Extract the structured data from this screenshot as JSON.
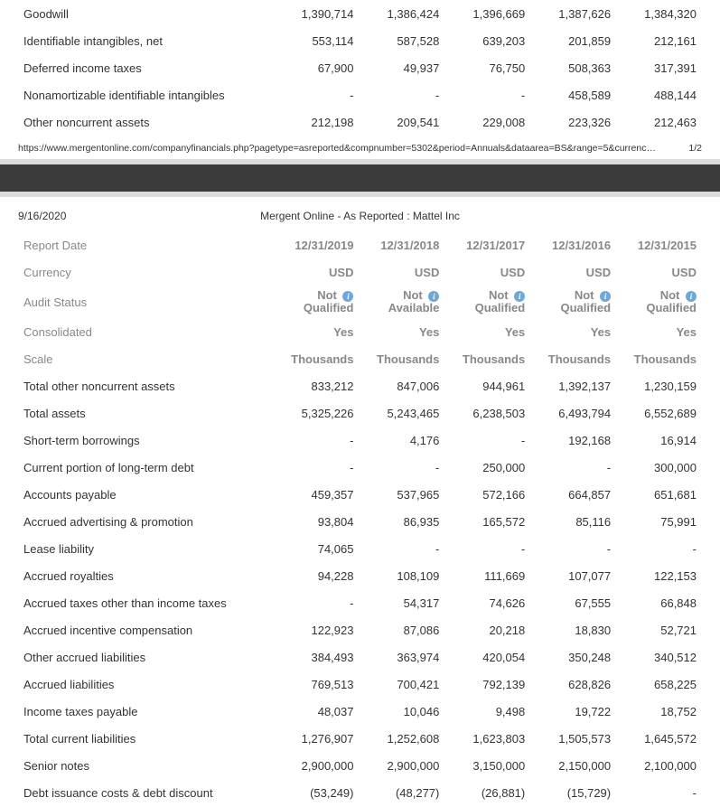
{
  "footer": {
    "url": "https://www.mergentonline.com/companyfinancials.php?pagetype=asreported&compnumber=5302&period=Annuals&dataarea=BS&range=5&currenc…",
    "pagenum": "1/2"
  },
  "page2header": {
    "date": "9/16/2020",
    "title": "Mergent Online - As Reported : Mattel Inc"
  },
  "columns": [
    "12/31/2019",
    "12/31/2018",
    "12/31/2017",
    "12/31/2016",
    "12/31/2015"
  ],
  "meta": {
    "reportDate": {
      "label": "Report Date",
      "vals": [
        "12/31/2019",
        "12/31/2018",
        "12/31/2017",
        "12/31/2016",
        "12/31/2015"
      ]
    },
    "currency": {
      "label": "Currency",
      "vals": [
        "USD",
        "USD",
        "USD",
        "USD",
        "USD"
      ]
    },
    "audit": {
      "label": "Audit Status",
      "vals": [
        "Not Qualified",
        "Not Available",
        "Not Qualified",
        "Not Qualified",
        "Not Qualified"
      ]
    },
    "consolidated": {
      "label": "Consolidated",
      "vals": [
        "Yes",
        "Yes",
        "Yes",
        "Yes",
        "Yes"
      ]
    },
    "scale": {
      "label": "Scale",
      "vals": [
        "Thousands",
        "Thousands",
        "Thousands",
        "Thousands",
        "Thousands"
      ]
    }
  },
  "top_rows": [
    {
      "label": "Goodwill",
      "vals": [
        "1,390,714",
        "1,386,424",
        "1,396,669",
        "1,387,626",
        "1,384,320"
      ]
    },
    {
      "label": "Identifiable intangibles, net",
      "vals": [
        "553,114",
        "587,528",
        "639,203",
        "201,859",
        "212,161"
      ]
    },
    {
      "label": "Deferred income taxes",
      "vals": [
        "67,900",
        "49,937",
        "76,750",
        "508,363",
        "317,391"
      ]
    },
    {
      "label": "Nonamortizable identifiable intangibles",
      "vals": [
        "-",
        "-",
        "-",
        "458,589",
        "488,144"
      ]
    },
    {
      "label": "Other noncurrent assets",
      "vals": [
        "212,198",
        "209,541",
        "229,008",
        "223,326",
        "212,463"
      ]
    }
  ],
  "rows": [
    {
      "label": "Total other noncurrent assets",
      "vals": [
        "833,212",
        "847,006",
        "944,961",
        "1,392,137",
        "1,230,159"
      ]
    },
    {
      "label": "Total assets",
      "vals": [
        "5,325,226",
        "5,243,465",
        "6,238,503",
        "6,493,794",
        "6,552,689"
      ]
    },
    {
      "label": "Short-term borrowings",
      "vals": [
        "-",
        "4,176",
        "-",
        "192,168",
        "16,914"
      ]
    },
    {
      "label": "Current portion of long-term debt",
      "vals": [
        "-",
        "-",
        "250,000",
        "-",
        "300,000"
      ]
    },
    {
      "label": "Accounts payable",
      "vals": [
        "459,357",
        "537,965",
        "572,166",
        "664,857",
        "651,681"
      ]
    },
    {
      "label": "Accrued advertising & promotion",
      "vals": [
        "93,804",
        "86,935",
        "165,572",
        "85,116",
        "75,991"
      ]
    },
    {
      "label": "Lease liability",
      "vals": [
        "74,065",
        "-",
        "-",
        "-",
        "-"
      ]
    },
    {
      "label": "Accrued royalties",
      "vals": [
        "94,228",
        "108,109",
        "111,669",
        "107,077",
        "122,153"
      ]
    },
    {
      "label": "Accrued taxes other than income taxes",
      "vals": [
        "-",
        "54,317",
        "74,626",
        "67,555",
        "66,848"
      ]
    },
    {
      "label": "Accrued incentive compensation",
      "vals": [
        "122,923",
        "87,086",
        "20,218",
        "18,830",
        "52,721"
      ]
    },
    {
      "label": "Other accrued liabilities",
      "vals": [
        "384,493",
        "363,974",
        "420,054",
        "350,248",
        "340,512"
      ]
    },
    {
      "label": "Accrued liabilities",
      "vals": [
        "769,513",
        "700,421",
        "792,139",
        "628,826",
        "658,225"
      ]
    },
    {
      "label": "Income taxes payable",
      "vals": [
        "48,037",
        "10,046",
        "9,498",
        "19,722",
        "18,752"
      ]
    },
    {
      "label": "Total current liabilities",
      "vals": [
        "1,276,907",
        "1,252,608",
        "1,623,803",
        "1,505,573",
        "1,645,572"
      ]
    },
    {
      "label": "Senior notes",
      "vals": [
        "2,900,000",
        "2,900,000",
        "3,150,000",
        "2,150,000",
        "2,100,000"
      ]
    },
    {
      "label": "Debt issuance costs & debt discount",
      "vals": [
        "(53,249)",
        "(48,277)",
        "(26,881)",
        "(15,729)",
        "-"
      ]
    }
  ]
}
